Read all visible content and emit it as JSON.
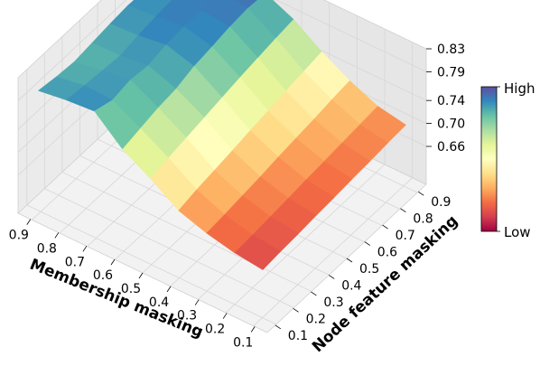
{
  "chart_data": {
    "type": "surface3d",
    "x_label": "Membership masking",
    "y_label": "Node feature masking",
    "x_ticks": [
      "0.9",
      "0.8",
      "0.7",
      "0.6",
      "0.5",
      "0.4",
      "0.3",
      "0.2",
      "0.1"
    ],
    "y_ticks": [
      "0.1",
      "0.2",
      "0.3",
      "0.4",
      "0.5",
      "0.6",
      "0.7",
      "0.8",
      "0.9"
    ],
    "z_ticks": [
      "0.83",
      "0.79",
      "0.74",
      "0.70",
      "0.66"
    ],
    "z_range": [
      0.66,
      0.83
    ],
    "colorbar": {
      "high_label": "High",
      "low_label": "Low",
      "colormap": "Spectral"
    },
    "x_values": [
      0.9,
      0.8,
      0.7,
      0.6,
      0.5,
      0.4,
      0.3,
      0.2,
      0.1
    ],
    "y_values": [
      0.1,
      0.2,
      0.3,
      0.4,
      0.5,
      0.6,
      0.7,
      0.8,
      0.9
    ],
    "z_note": "z[i][j] where i indexes membership masking 0.9..0.1 and j indexes node feature masking 0.1..0.9",
    "z": [
      [
        0.805,
        0.8,
        0.797,
        0.801,
        0.805,
        0.808,
        0.806,
        0.802,
        0.8
      ],
      [
        0.812,
        0.808,
        0.805,
        0.802,
        0.808,
        0.812,
        0.815,
        0.81,
        0.812
      ],
      [
        0.816,
        0.806,
        0.812,
        0.808,
        0.815,
        0.818,
        0.816,
        0.822,
        0.825
      ],
      [
        0.773,
        0.78,
        0.787,
        0.791,
        0.801,
        0.806,
        0.812,
        0.815,
        0.812
      ],
      [
        0.745,
        0.752,
        0.758,
        0.764,
        0.77,
        0.776,
        0.781,
        0.786,
        0.79
      ],
      [
        0.713,
        0.72,
        0.725,
        0.73,
        0.736,
        0.741,
        0.747,
        0.752,
        0.757
      ],
      [
        0.697,
        0.7,
        0.704,
        0.708,
        0.713,
        0.717,
        0.721,
        0.726,
        0.73
      ],
      [
        0.686,
        0.688,
        0.691,
        0.694,
        0.697,
        0.7,
        0.703,
        0.706,
        0.709
      ],
      [
        0.68,
        0.683,
        0.685,
        0.688,
        0.69,
        0.693,
        0.695,
        0.698,
        0.7
      ]
    ]
  }
}
